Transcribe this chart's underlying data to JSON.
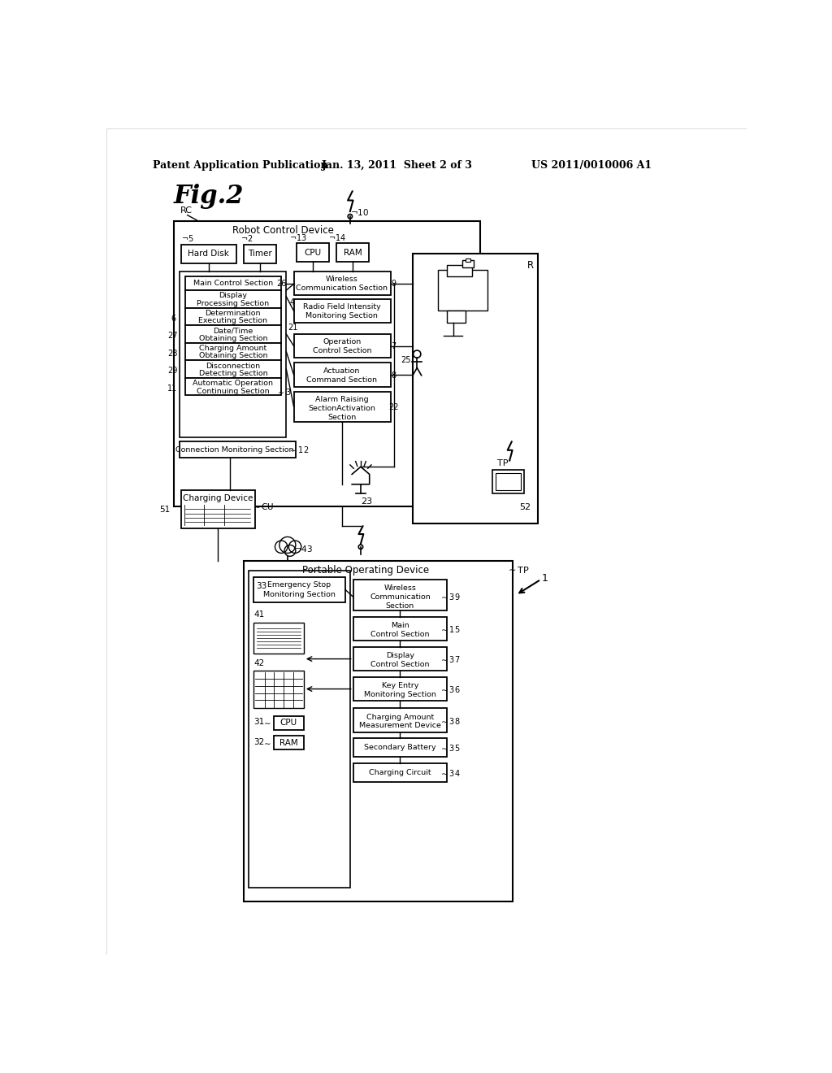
{
  "bg_color": "#ffffff",
  "header_left": "Patent Application Publication",
  "header_mid": "Jan. 13, 2011  Sheet 2 of 3",
  "header_right": "US 2011/0010006 A1",
  "fig_label": "Fig.2"
}
